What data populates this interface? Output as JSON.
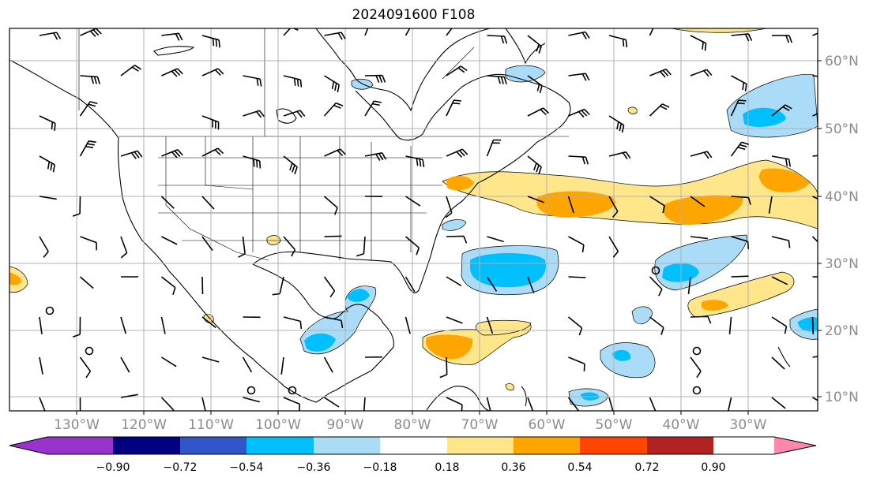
{
  "title": "2024091600 F108",
  "map": {
    "type": "meteorological-field-map",
    "projection": "lat-lon",
    "lon_range": [
      "138°W",
      "15°W"
    ],
    "lat_range": [
      "8°N",
      "65°N"
    ],
    "gridlines": true,
    "lat_labels": [
      "60°N",
      "50°N",
      "40°N",
      "30°N",
      "20°N",
      "10°N"
    ],
    "lon_labels": [
      "130°W",
      "120°W",
      "110°W",
      "100°W",
      "90°W",
      "80°W",
      "70°W",
      "60°W",
      "50°W",
      "40°W",
      "30°W"
    ],
    "overlay": "wind barbs",
    "colors": {
      "ocean_land": "#ffffff",
      "coast": "#000000",
      "grid": "#b0b0b0"
    }
  },
  "colorbar": {
    "labels": [
      "−0.90",
      "−0.72",
      "−0.54",
      "−0.36",
      "−0.18",
      "0.18",
      "0.36",
      "0.54",
      "0.72",
      "0.90"
    ],
    "colors": [
      "#9933cc",
      "#000080",
      "#3355cc",
      "#00bfff",
      "#aadcf8",
      "#ffffff",
      "#ffe68a",
      "#ffa500",
      "#ff4500",
      "#b22222",
      "#ff88aa"
    ],
    "extend": "both"
  }
}
